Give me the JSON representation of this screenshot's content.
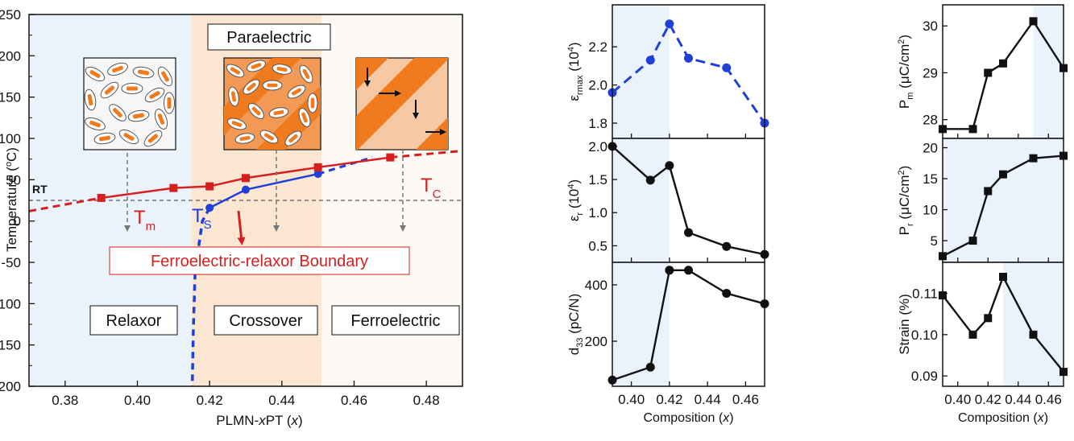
{
  "colors": {
    "red": "#d61f1f",
    "blue": "#1f3fd6",
    "black": "#111111",
    "relaxor_bg": "#eaf3fc",
    "crossover_bg": "#fbe6d2",
    "ferro_bg": "#fdfaf6",
    "orange": "#f07a1e"
  },
  "chart_data": [
    {
      "type": "line",
      "id": "phase-diagram",
      "title": "",
      "xlabel": "PLMN-xPT (x)",
      "xlabel_main": "PLMN-",
      "xlabel_italic": "x",
      "xlabel_tail": "PT (",
      "xlabel_var": "x",
      "xlabel_end": ")",
      "ylabel": "Temperature (°C)",
      "xlim": [
        0.37,
        0.49
      ],
      "ylim": [
        -200,
        250
      ],
      "xticks": [
        0.38,
        0.4,
        0.42,
        0.44,
        0.46,
        0.48
      ],
      "xtick_labels": [
        "0.38",
        "0.40",
        "0.42",
        "0.44",
        "0.46",
        "0.48"
      ],
      "yticks": [
        -200,
        -150,
        -100,
        -50,
        0,
        50,
        100,
        150,
        200,
        250
      ],
      "ytick_labels": [
        "-200",
        "-150",
        "-100",
        "-50",
        "0",
        "50",
        "100",
        "150",
        "200",
        "250"
      ],
      "regions": [
        {
          "name": "Relaxor",
          "from": 0.37,
          "to": 0.415
        },
        {
          "name": "Crossover",
          "from": 0.415,
          "to": 0.451
        },
        {
          "name": "Ferroelectric",
          "from": 0.451,
          "to": 0.49
        }
      ],
      "region_labels": [
        "Relaxor",
        "Crossover",
        "Ferroelectric"
      ],
      "top_label": "Paraelectric",
      "rt_label": "RT",
      "rt_value": 25,
      "boundary_label": "Ferroelectric-relaxor Boundary",
      "series": [
        {
          "name": "T",
          "subscript": "m",
          "marker": "square",
          "x": [
            0.39,
            0.41,
            0.42,
            0.43,
            0.45,
            0.47
          ],
          "y": [
            28,
            40,
            42,
            52,
            65,
            77
          ],
          "dash_left_to": [
            0.37,
            12
          ],
          "dash_right_to": [
            0.49,
            85
          ]
        },
        {
          "name": "T",
          "subscript": "S",
          "marker": "circle",
          "x": [
            0.42,
            0.43,
            0.45
          ],
          "y": [
            16,
            38,
            57
          ],
          "dash_to": [
            0.465,
            77
          ],
          "dash_down": [
            [
              0.42,
              16
            ],
            [
              0.418,
              0
            ],
            [
              0.416,
              -60
            ],
            [
              0.4155,
              -130
            ],
            [
              0.4152,
              -200
            ]
          ]
        },
        {
          "name": "T",
          "subscript": "C",
          "marker": "none",
          "x": [],
          "y": []
        }
      ]
    },
    {
      "type": "line",
      "id": "eps-rmax",
      "ylabel": "ε_rmax (10^4)",
      "x": [
        0.39,
        0.41,
        0.42,
        0.43,
        0.45,
        0.47
      ],
      "values": [
        1.96,
        2.13,
        2.32,
        2.14,
        2.09,
        1.8
      ],
      "xlim": [
        0.39,
        0.47
      ],
      "ylim": [
        1.72,
        2.42
      ],
      "yticks": [
        1.8,
        2.0,
        2.2
      ],
      "ytick_labels": [
        "1.8",
        "2.0",
        "2.2"
      ],
      "style": "dashed-blue-circle",
      "shade": [
        0.39,
        0.42
      ]
    },
    {
      "type": "line",
      "id": "eps-r",
      "ylabel": "ε_r (10^4)",
      "x": [
        0.39,
        0.41,
        0.42,
        0.43,
        0.45,
        0.47
      ],
      "values": [
        2.0,
        1.49,
        1.71,
        0.7,
        0.49,
        0.37
      ],
      "xlim": [
        0.39,
        0.47
      ],
      "ylim": [
        0.25,
        2.12
      ],
      "yticks": [
        0.5,
        1.0,
        1.5,
        2.0
      ],
      "ytick_labels": [
        "0.5",
        "1.0",
        "1.5",
        "2.0"
      ],
      "style": "solid-black-circle",
      "shade": [
        0.39,
        0.42
      ]
    },
    {
      "type": "line",
      "id": "d33",
      "ylabel": "d_33 (pC/N)",
      "x": [
        0.39,
        0.41,
        0.42,
        0.43,
        0.45,
        0.47
      ],
      "values": [
        62,
        108,
        452,
        452,
        370,
        333
      ],
      "xlim": [
        0.39,
        0.47
      ],
      "ylim": [
        40,
        480
      ],
      "yticks": [
        200,
        400
      ],
      "ytick_labels": [
        "200",
        "400"
      ],
      "xticks": [
        0.4,
        0.42,
        0.44,
        0.46
      ],
      "xtick_labels": [
        "0.40",
        "0.42",
        "0.44",
        "0.46"
      ],
      "xlabel": "Composition (x)",
      "style": "solid-black-circle",
      "shade": [
        0.39,
        0.42
      ]
    },
    {
      "type": "line",
      "id": "pm",
      "ylabel": "P_m (μC/cm²)",
      "x": [
        0.39,
        0.41,
        0.42,
        0.43,
        0.45,
        0.47
      ],
      "values": [
        27.8,
        27.8,
        29.0,
        29.2,
        30.1,
        29.1
      ],
      "xlim": [
        0.39,
        0.47
      ],
      "ylim": [
        27.6,
        30.45
      ],
      "yticks": [
        28,
        29,
        30
      ],
      "ytick_labels": [
        "28",
        "29",
        "30"
      ],
      "style": "solid-black-square",
      "shade": [
        0.45,
        0.47
      ]
    },
    {
      "type": "line",
      "id": "pr",
      "ylabel": "P_r (μC/cm²)",
      "x": [
        0.39,
        0.41,
        0.42,
        0.43,
        0.45,
        0.47
      ],
      "values": [
        2.5,
        5.0,
        13.0,
        15.7,
        18.3,
        18.7
      ],
      "xlim": [
        0.39,
        0.47
      ],
      "ylim": [
        1.5,
        21.5
      ],
      "yticks": [
        5,
        10,
        15,
        20
      ],
      "ytick_labels": [
        "5",
        "10",
        "15",
        "20"
      ],
      "style": "solid-black-square",
      "shade": [
        0.39,
        0.47
      ]
    },
    {
      "type": "line",
      "id": "strain",
      "ylabel": "Strain (%)",
      "x": [
        0.39,
        0.41,
        0.42,
        0.43,
        0.45,
        0.47
      ],
      "values": [
        0.1095,
        0.1,
        0.104,
        0.114,
        0.1,
        0.091
      ],
      "xlim": [
        0.39,
        0.47
      ],
      "ylim": [
        0.0875,
        0.1175
      ],
      "yticks": [
        0.09,
        0.1,
        0.11
      ],
      "ytick_labels": [
        "0.09",
        "0.10",
        "0.11"
      ],
      "xticks": [
        0.4,
        0.42,
        0.44,
        0.46
      ],
      "xtick_labels": [
        "0.40",
        "0.42",
        "0.44",
        "0.46"
      ],
      "xlabel": "Composition (x)",
      "style": "solid-black-square",
      "shade": [
        0.43,
        0.47
      ]
    }
  ],
  "labels": {
    "eps_rmax_main": "ε",
    "eps_rmax_sub": "rmax",
    "eps_rmax_unit": "(10",
    "eps_rmax_sup": "4",
    "eps_r_main": "ε",
    "eps_r_sub": "r",
    "eps_r_unit": "(10",
    "eps_r_sup": "4",
    "d33_main": "d",
    "d33_sub": "33",
    "d33_unit": "(pC/N)",
    "pm_main": "P",
    "pm_sub": "m",
    "pm_unit": "(μC/cm",
    "pm_sup": "2",
    "pr_main": "P",
    "pr_sub": "r",
    "pr_unit": "(μC/cm",
    "pr_sup": "2",
    "strain": "Strain (%)",
    "comp_main": "Composition (",
    "comp_var": "x",
    "comp_end": ")",
    "temp_main": "Temperature (",
    "temp_sup": "o",
    "temp_end": "C)",
    "tm_main": "T",
    "tm_sub": "m",
    "ts_main": "T",
    "ts_sub": "S",
    "tc_main": "T",
    "tc_sub": "C"
  }
}
